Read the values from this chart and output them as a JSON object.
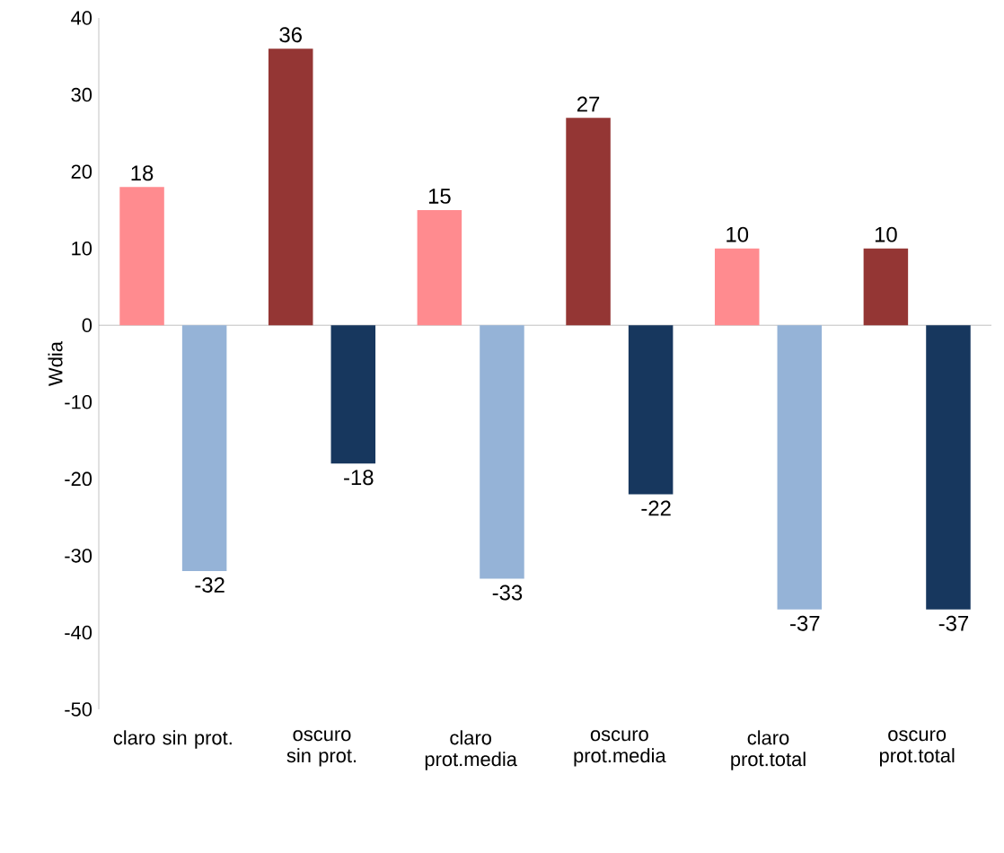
{
  "chart_data": {
    "type": "bar",
    "ylabel": "Wdia",
    "categories": [
      "claro sin prot.",
      "oscuro sin prot.",
      "claro prot.media",
      "oscuro prot.media",
      "claro prot.total",
      "oscuro prot.total"
    ],
    "series": [
      {
        "colors": [
          "#ff8b8f",
          "#943634",
          "#ff8b8f",
          "#943634",
          "#ff8b8f",
          "#943634"
        ],
        "values": [
          18,
          36,
          15,
          27,
          10,
          10
        ]
      },
      {
        "colors": [
          "#95b3d7",
          "#17375e",
          "#95b3d7",
          "#17375e",
          "#95b3d7",
          "#17375e"
        ],
        "values": [
          -32,
          -18,
          -33,
          -22,
          -37,
          -37
        ]
      }
    ],
    "ylim": [
      -50,
      40
    ],
    "yticks": [
      -50,
      -40,
      -30,
      -20,
      -10,
      0,
      10,
      20,
      30,
      40
    ],
    "data_labels": true
  }
}
